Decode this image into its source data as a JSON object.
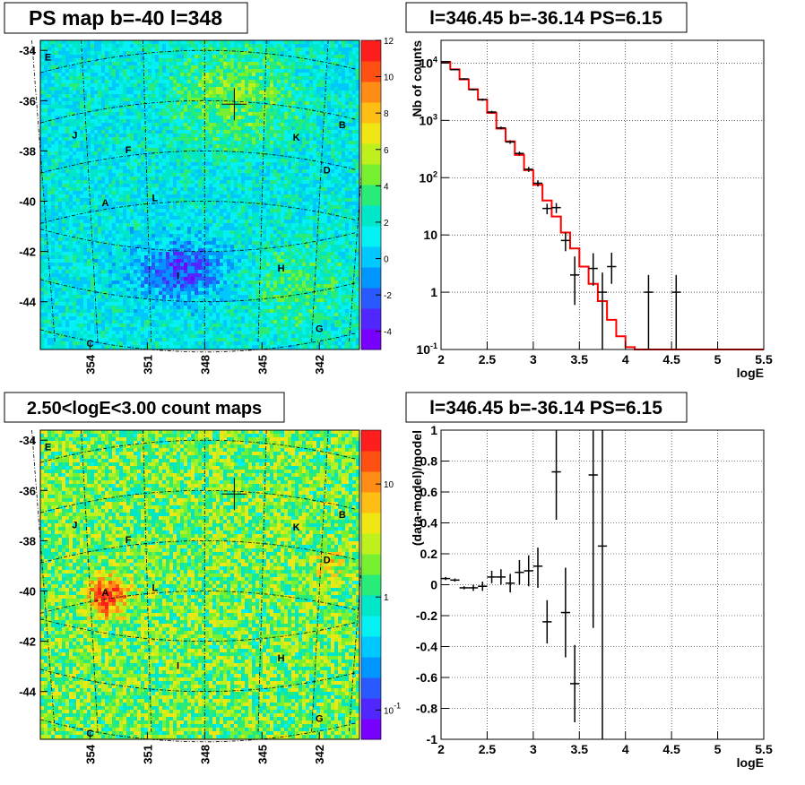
{
  "panels": {
    "tl_title": "PS map b=-40 l=348",
    "tr_title": "l=346.45 b=-36.14 PS=6.15",
    "bl_title": "2.50<logE<3.00 count maps",
    "br_title": "l=346.45 b=-36.14 PS=6.15"
  },
  "colors": {
    "axis": "#000000",
    "grid": "#000000",
    "model": "#ff0000",
    "data": "#000000",
    "tl_bg": "#05f2f2",
    "bl_bg": "#9cf233"
  },
  "chart_data": [
    {
      "type": "heatmap",
      "id": "ps-map",
      "title": "PS map b=-40 l=348",
      "y_ticks": [
        "-34",
        "-36",
        "-38",
        "-40",
        "-42",
        "-44"
      ],
      "y_tick_values": [
        -34,
        -36,
        -38,
        -40,
        -42,
        -44
      ],
      "x_ticks": [
        "354",
        "351",
        "348",
        "345",
        "342"
      ],
      "x_tick_values": [
        354,
        351,
        348,
        345,
        342
      ],
      "xlim": [
        356.6,
        339.9
      ],
      "ylim": [
        -45.9,
        -33.6
      ],
      "colorbar": {
        "ticks": [
          "12",
          "10",
          "8",
          "6",
          "4",
          "2",
          "0",
          "-2",
          "-4"
        ],
        "values": [
          12,
          10,
          8,
          6,
          4,
          2,
          0,
          -2,
          -4
        ],
        "range": [
          -5,
          12
        ]
      },
      "sources": [
        {
          "label": "E",
          "l": 356.2,
          "b": -34.4
        },
        {
          "label": "J",
          "l": 354.8,
          "b": -37.5
        },
        {
          "label": "F",
          "l": 352.0,
          "b": -38.1
        },
        {
          "label": "A",
          "l": 353.2,
          "b": -40.2
        },
        {
          "label": "L",
          "l": 350.6,
          "b": -40.0
        },
        {
          "label": "I",
          "l": 349.4,
          "b": -43.1
        },
        {
          "label": "H",
          "l": 344.0,
          "b": -42.8
        },
        {
          "label": "K",
          "l": 343.2,
          "b": -37.6
        },
        {
          "label": "B",
          "l": 340.8,
          "b": -37.1
        },
        {
          "label": "D",
          "l": 341.6,
          "b": -38.9
        },
        {
          "label": "G",
          "l": 342.0,
          "b": -45.2
        },
        {
          "label": "C",
          "l": 354.0,
          "b": -45.8
        }
      ],
      "marker": {
        "l": 346.45,
        "b": -36.14
      }
    },
    {
      "type": "line",
      "id": "spectrum",
      "title": "l=346.45 b=-36.14 PS=6.15",
      "xlabel": "logE",
      "ylabel": "Nb of counts",
      "yscale": "log",
      "xlim": [
        2,
        5.5
      ],
      "ylim": [
        0.1,
        25000
      ],
      "x_ticks": [
        "2",
        "2.5",
        "3",
        "3.5",
        "4",
        "4.5",
        "5",
        "5.5"
      ],
      "x_tick_values": [
        2,
        2.5,
        3,
        3.5,
        4,
        4.5,
        5,
        5.5
      ],
      "y_ticks": [
        "10^{-1}",
        "1",
        "10",
        "10^{2}",
        "10^{3}",
        "10^{4}"
      ],
      "y_tick_values": [
        0.1,
        1,
        10,
        100,
        1000,
        10000
      ],
      "grid": true,
      "model_bin_edges": [
        2.0,
        2.1,
        2.2,
        2.3,
        2.4,
        2.5,
        2.6,
        2.7,
        2.8,
        2.9,
        3.0,
        3.1,
        3.2,
        3.3,
        3.4,
        3.5,
        3.6,
        3.7,
        3.8,
        3.9,
        4.0,
        4.1,
        5.5
      ],
      "model_values": [
        10500,
        7800,
        5200,
        3500,
        2300,
        1350,
        720,
        430,
        250,
        135,
        75,
        40,
        21,
        11,
        5.8,
        2.8,
        1.4,
        0.7,
        0.33,
        0.17,
        0.11,
        0.1
      ],
      "data_points": [
        {
          "x": 2.05,
          "y": 10600,
          "lo": 10400,
          "hi": 10800,
          "xerr": 0.05
        },
        {
          "x": 2.15,
          "y": 7700,
          "lo": 7550,
          "hi": 7850,
          "xerr": 0.05
        },
        {
          "x": 2.25,
          "y": 5300,
          "lo": 5150,
          "hi": 5450,
          "xerr": 0.05
        },
        {
          "x": 2.35,
          "y": 3450,
          "lo": 3330,
          "hi": 3570,
          "xerr": 0.05
        },
        {
          "x": 2.45,
          "y": 2300,
          "lo": 2200,
          "hi": 2400,
          "xerr": 0.05
        },
        {
          "x": 2.55,
          "y": 1400,
          "lo": 1330,
          "hi": 1470,
          "xerr": 0.05
        },
        {
          "x": 2.65,
          "y": 740,
          "lo": 700,
          "hi": 780,
          "xerr": 0.05
        },
        {
          "x": 2.75,
          "y": 420,
          "lo": 390,
          "hi": 450,
          "xerr": 0.05
        },
        {
          "x": 2.85,
          "y": 265,
          "lo": 245,
          "hi": 285,
          "xerr": 0.05
        },
        {
          "x": 2.95,
          "y": 140,
          "lo": 126,
          "hi": 154,
          "xerr": 0.05
        },
        {
          "x": 3.05,
          "y": 80,
          "lo": 70,
          "hi": 90,
          "xerr": 0.05
        },
        {
          "x": 3.15,
          "y": 29,
          "lo": 23,
          "hi": 35,
          "xerr": 0.05
        },
        {
          "x": 3.25,
          "y": 30,
          "lo": 24,
          "hi": 36,
          "xerr": 0.05
        },
        {
          "x": 3.35,
          "y": 8,
          "lo": 5.2,
          "hi": 11,
          "xerr": 0.05
        },
        {
          "x": 3.45,
          "y": 2,
          "lo": 0.6,
          "hi": 4.2,
          "xerr": 0.05
        },
        {
          "x": 3.65,
          "y": 2.6,
          "lo": 1.3,
          "hi": 4.8,
          "xerr": 0.05
        },
        {
          "x": 3.75,
          "y": 1,
          "lo": 0.1,
          "hi": 2.2,
          "xerr": 0.05
        },
        {
          "x": 3.85,
          "y": 2.8,
          "lo": 1.4,
          "hi": 4.9,
          "xerr": 0.05
        },
        {
          "x": 4.25,
          "y": 1,
          "lo": 0.1,
          "hi": 2.0,
          "xerr": 0.05
        },
        {
          "x": 4.55,
          "y": 1,
          "lo": 0.1,
          "hi": 2.0,
          "xerr": 0.05
        }
      ]
    },
    {
      "type": "heatmap",
      "id": "count-map",
      "title": "2.50<logE<3.00 count maps",
      "y_ticks": [
        "-34",
        "-36",
        "-38",
        "-40",
        "-42",
        "-44"
      ],
      "y_tick_values": [
        -34,
        -36,
        -38,
        -40,
        -42,
        -44
      ],
      "x_ticks": [
        "354",
        "351",
        "348",
        "345",
        "342"
      ],
      "x_tick_values": [
        354,
        351,
        348,
        345,
        342
      ],
      "xlim": [
        356.6,
        339.9
      ],
      "ylim": [
        -45.9,
        -33.6
      ],
      "colorbar": {
        "ticks": [
          "10",
          "1",
          "10^{-1}"
        ],
        "values": [
          10,
          1,
          0.1
        ],
        "scale": "log"
      },
      "sources": [
        {
          "label": "E",
          "l": 356.2,
          "b": -34.4
        },
        {
          "label": "J",
          "l": 354.8,
          "b": -37.5
        },
        {
          "label": "F",
          "l": 352.0,
          "b": -38.1
        },
        {
          "label": "A",
          "l": 353.2,
          "b": -40.2
        },
        {
          "label": "L",
          "l": 350.6,
          "b": -40.0
        },
        {
          "label": "I",
          "l": 349.4,
          "b": -43.1
        },
        {
          "label": "H",
          "l": 344.0,
          "b": -42.8
        },
        {
          "label": "K",
          "l": 343.2,
          "b": -37.6
        },
        {
          "label": "B",
          "l": 340.8,
          "b": -37.1
        },
        {
          "label": "D",
          "l": 341.6,
          "b": -38.9
        },
        {
          "label": "G",
          "l": 342.0,
          "b": -45.2
        },
        {
          "label": "C",
          "l": 354.0,
          "b": -45.8
        }
      ],
      "marker": {
        "l": 346.45,
        "b": -36.14
      }
    },
    {
      "type": "scatter",
      "id": "residuals",
      "title": "l=346.45 b=-36.14 PS=6.15",
      "xlabel": "logE",
      "ylabel": "(data-model)/model",
      "xlim": [
        2,
        5.5
      ],
      "ylim": [
        -1,
        1
      ],
      "x_ticks": [
        "2",
        "2.5",
        "3",
        "3.5",
        "4",
        "4.5",
        "5",
        "5.5"
      ],
      "x_tick_values": [
        2,
        2.5,
        3,
        3.5,
        4,
        4.5,
        5,
        5.5
      ],
      "y_ticks": [
        "-1",
        "-0.8",
        "-0.6",
        "-0.4",
        "-0.2",
        "0",
        "0.2",
        "0.4",
        "0.6",
        "0.8",
        "1"
      ],
      "y_tick_values": [
        -1,
        -0.8,
        -0.6,
        -0.4,
        -0.2,
        0,
        0.2,
        0.4,
        0.6,
        0.8,
        1
      ],
      "grid": true,
      "data_points": [
        {
          "x": 2.05,
          "y": 0.04,
          "lo": 0.03,
          "hi": 0.05,
          "xerr": 0.05
        },
        {
          "x": 2.15,
          "y": 0.03,
          "lo": 0.02,
          "hi": 0.04,
          "xerr": 0.05
        },
        {
          "x": 2.25,
          "y": -0.02,
          "lo": -0.03,
          "hi": -0.01,
          "xerr": 0.05
        },
        {
          "x": 2.35,
          "y": -0.02,
          "lo": -0.04,
          "hi": 0.0,
          "xerr": 0.05
        },
        {
          "x": 2.45,
          "y": -0.01,
          "lo": -0.04,
          "hi": 0.02,
          "xerr": 0.05
        },
        {
          "x": 2.55,
          "y": 0.05,
          "lo": 0.01,
          "hi": 0.09,
          "xerr": 0.05
        },
        {
          "x": 2.65,
          "y": 0.05,
          "lo": 0.0,
          "hi": 0.1,
          "xerr": 0.05
        },
        {
          "x": 2.75,
          "y": 0.01,
          "lo": -0.05,
          "hi": 0.07,
          "xerr": 0.05
        },
        {
          "x": 2.85,
          "y": 0.08,
          "lo": 0.0,
          "hi": 0.16,
          "xerr": 0.05
        },
        {
          "x": 2.95,
          "y": 0.09,
          "lo": -0.01,
          "hi": 0.19,
          "xerr": 0.05
        },
        {
          "x": 3.05,
          "y": 0.12,
          "lo": -0.02,
          "hi": 0.24,
          "xerr": 0.05
        },
        {
          "x": 3.15,
          "y": -0.24,
          "lo": -0.38,
          "hi": -0.1,
          "xerr": 0.05
        },
        {
          "x": 3.25,
          "y": 0.73,
          "lo": 0.42,
          "hi": 1.0,
          "xerr": 0.05
        },
        {
          "x": 3.35,
          "y": -0.18,
          "lo": -0.47,
          "hi": 0.11,
          "xerr": 0.05
        },
        {
          "x": 3.45,
          "y": -0.64,
          "lo": -0.89,
          "hi": -0.39,
          "xerr": 0.05
        },
        {
          "x": 3.65,
          "y": 0.71,
          "lo": -0.28,
          "hi": 1.0,
          "xerr": 0.05
        },
        {
          "x": 3.75,
          "y": 0.25,
          "lo": -1.0,
          "hi": 1.0,
          "xerr": 0.05
        }
      ]
    }
  ]
}
